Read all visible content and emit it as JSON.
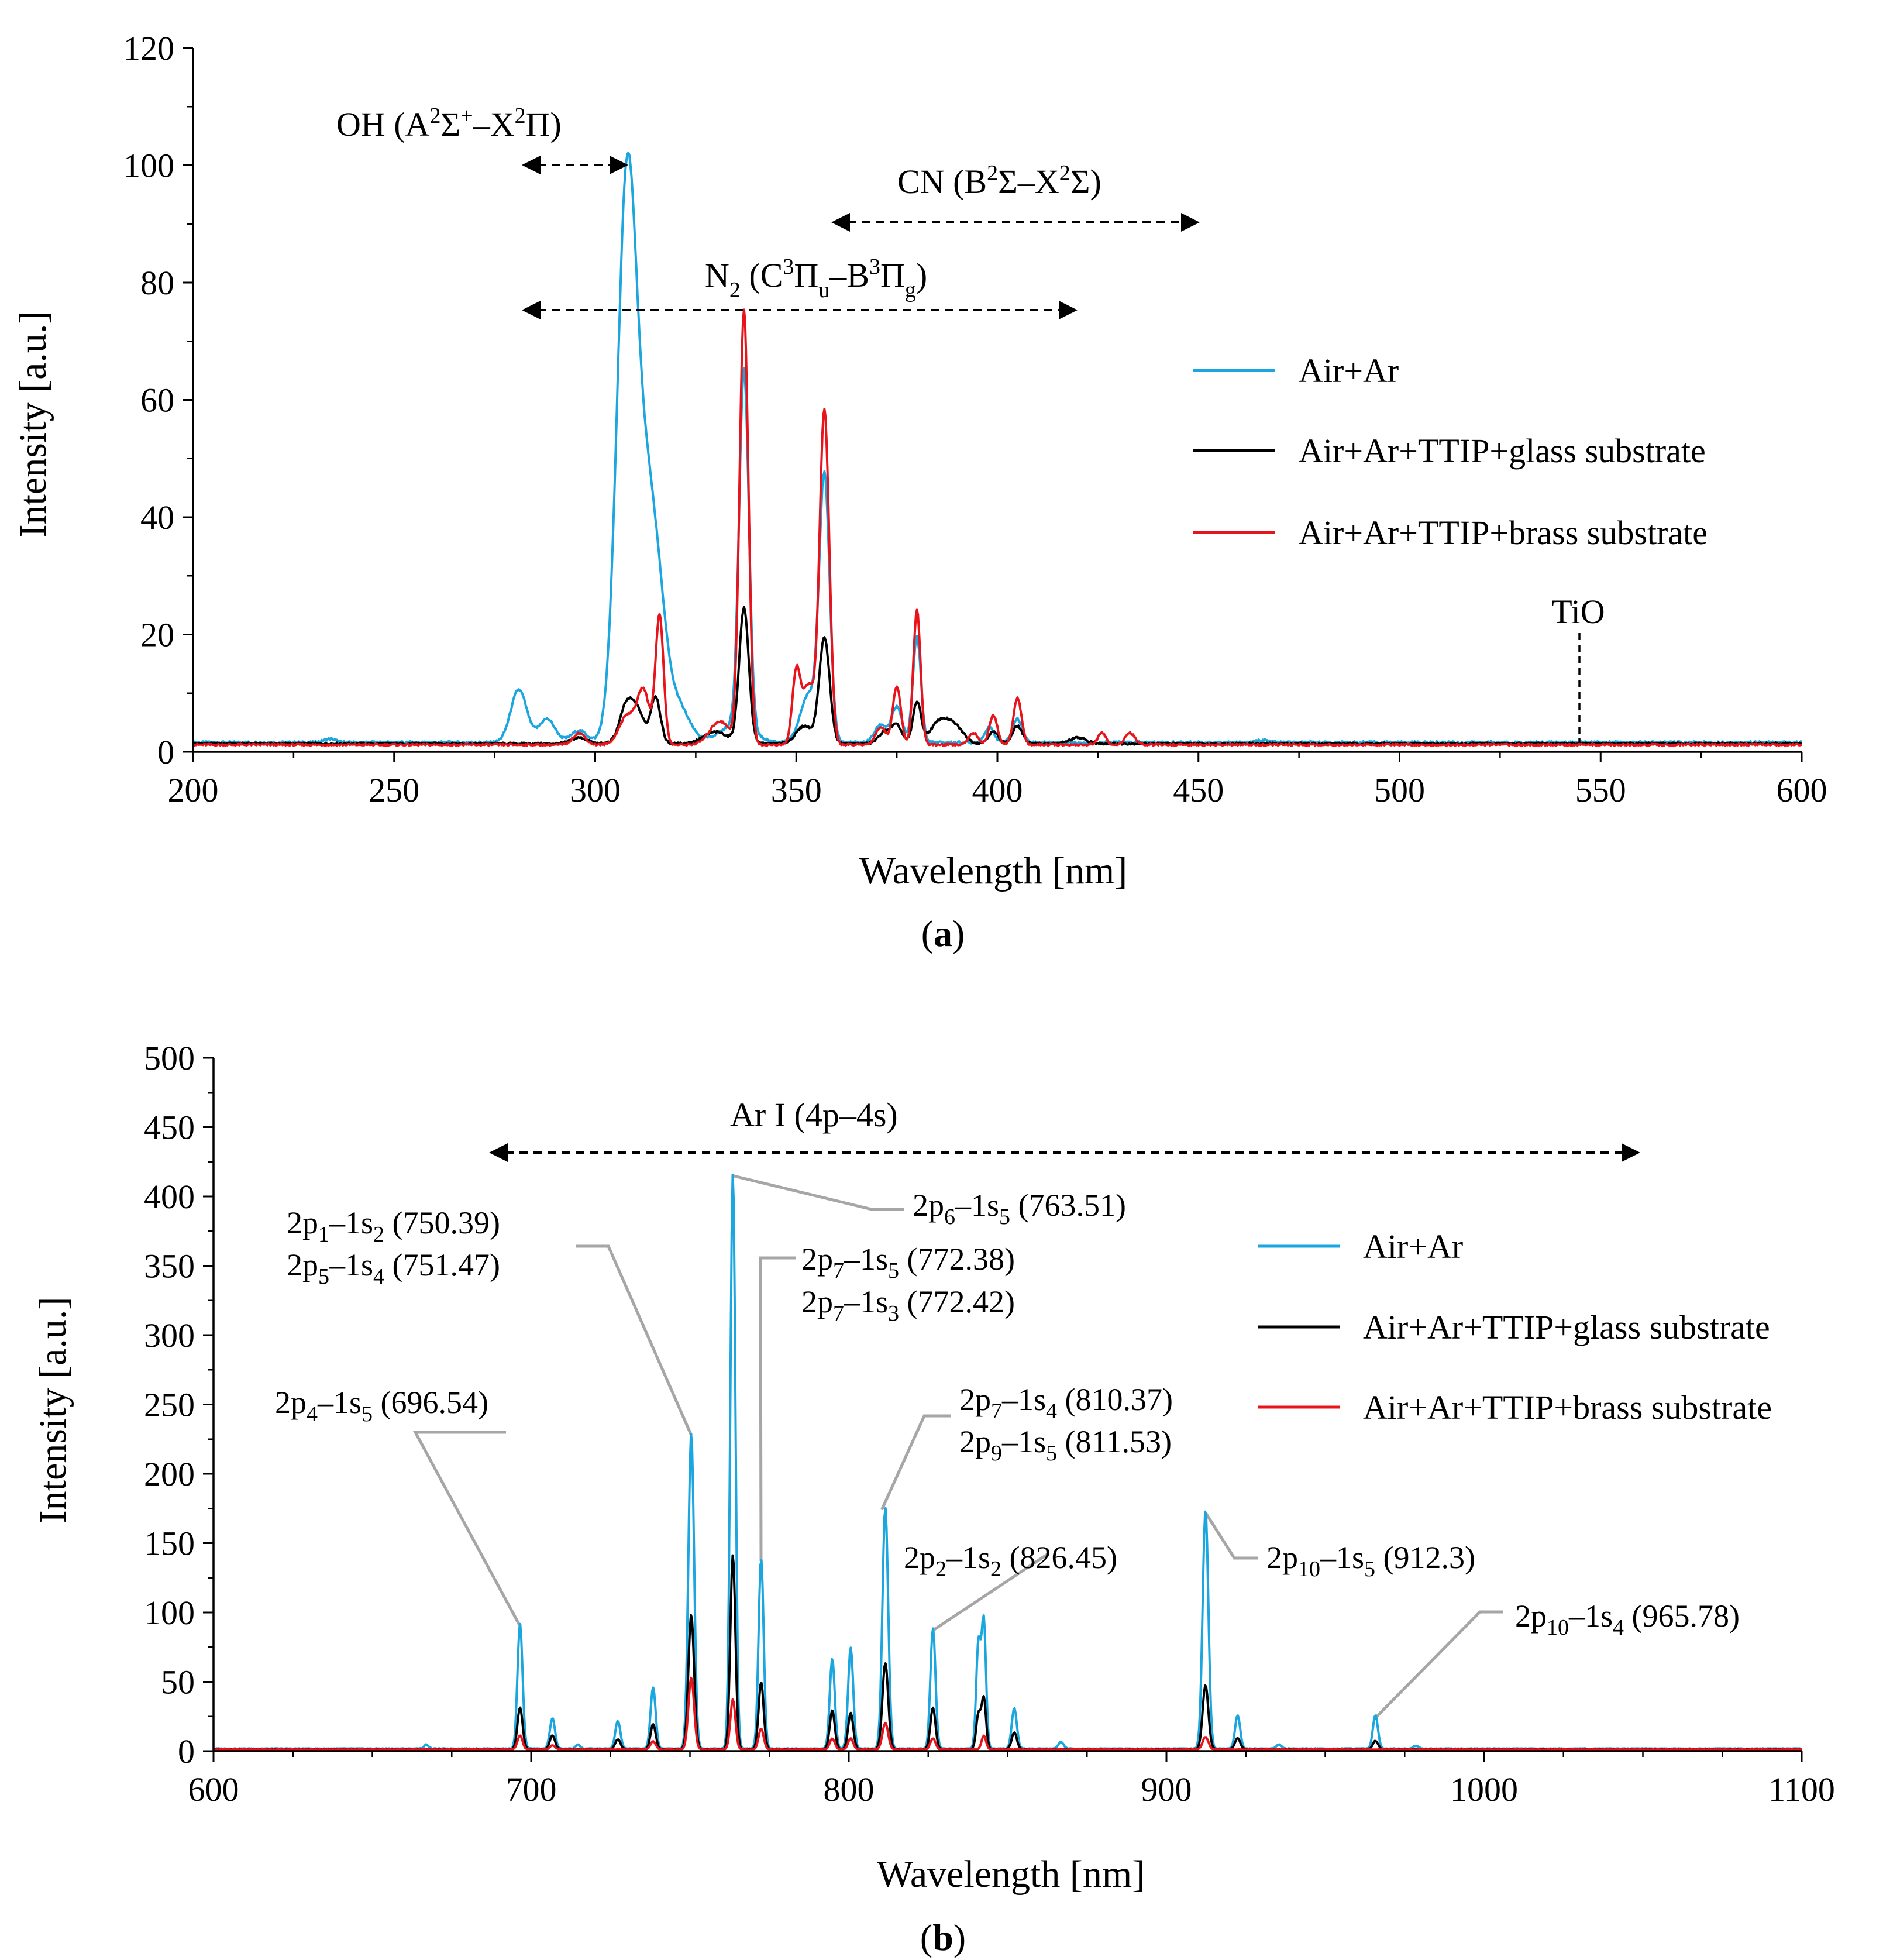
{
  "chart_data": [
    {
      "panel": "a",
      "type": "line",
      "caption_label": "a",
      "xlabel": "Wavelength [nm]",
      "ylabel": "Intensity [a.u.]",
      "xlim": [
        200,
        600
      ],
      "ylim": [
        0,
        120
      ],
      "xticks": [
        200,
        250,
        300,
        350,
        400,
        450,
        500,
        550,
        600
      ],
      "yticks": [
        0,
        20,
        40,
        60,
        80,
        100,
        120
      ],
      "legend_position": "right",
      "series": [
        {
          "name": "Air+Ar",
          "color": "#1ba6e0",
          "peaks": [
            [
              234,
              0.6,
              1.5
            ],
            [
              281,
              9,
              2
            ],
            [
              288,
              4,
              2
            ],
            [
              296,
              2,
              2
            ],
            [
              308,
              98,
              2.5
            ],
            [
              313,
              32,
              2.2
            ],
            [
              316,
              15,
              2
            ],
            [
              320,
              7,
              3
            ],
            [
              335,
              3,
              4
            ],
            [
              337,
              61,
              1.2
            ],
            [
              353,
              8,
              2
            ],
            [
              357,
              45,
              1.3
            ],
            [
              371,
              3,
              1.5
            ],
            [
              375,
              6,
              1.3
            ],
            [
              380,
              18,
              1
            ],
            [
              398,
              2.5,
              1.2
            ],
            [
              405,
              4,
              1.2
            ],
            [
              466,
              0.4,
              1.5
            ]
          ]
        },
        {
          "name": "Air+Ar+TTIP+glass substrate",
          "color": "#000000",
          "peaks": [
            [
              296,
              1,
              2
            ],
            [
              308,
              7,
              1.8
            ],
            [
              311,
              4,
              1.5
            ],
            [
              315,
              8,
              1.2
            ],
            [
              330,
              2,
              3
            ],
            [
              337,
              23,
              1.2
            ],
            [
              352,
              3,
              2
            ],
            [
              357,
              18,
              1.3
            ],
            [
              372,
              2,
              1.5
            ],
            [
              375,
              3,
              1.3
            ],
            [
              380,
              7,
              1
            ],
            [
              386,
              4,
              2.5
            ],
            [
              390,
              2,
              2
            ],
            [
              399,
              2,
              1.3
            ],
            [
              405,
              3,
              1.2
            ],
            [
              420,
              1,
              2
            ]
          ]
        },
        {
          "name": "Air+Ar+TTIP+brass substrate",
          "color": "#e8141c",
          "peaks": [
            [
              296,
              2,
              1.5
            ],
            [
              308,
              5,
              2
            ],
            [
              312,
              9,
              1.5
            ],
            [
              316,
              22,
              1
            ],
            [
              331,
              4,
              2.5
            ],
            [
              337,
              74,
              1.1
            ],
            [
              350,
              12,
              1
            ],
            [
              353,
              10,
              1.5
            ],
            [
              357,
              57,
              1.2
            ],
            [
              371,
              3,
              1.3
            ],
            [
              375,
              10,
              1
            ],
            [
              380,
              23,
              0.9
            ],
            [
              394,
              2,
              1.2
            ],
            [
              399,
              5,
              1
            ],
            [
              405,
              8,
              1
            ],
            [
              426,
              2,
              1
            ],
            [
              433,
              2,
              1.2
            ]
          ]
        }
      ],
      "baselines": [
        1.6,
        1.4,
        1.2
      ],
      "annotations": [
        {
          "label": "OH (A²Σ⁺–X²Π)",
          "x1": 281,
          "x2": 308,
          "y": 100
        },
        {
          "label": "CN (B²Σ–X²Σ)",
          "x1": 358,
          "x2": 450,
          "y": 90
        },
        {
          "label": "N₂ (C³Πu–B³Πg)",
          "x1": 281,
          "x2": 419,
          "y": 75
        },
        {
          "label": "TiO",
          "x": 545,
          "y": 20
        }
      ]
    },
    {
      "panel": "b",
      "type": "line",
      "caption_label": "b",
      "xlabel": "Wavelength [nm]",
      "ylabel": "Intensity [a.u.]",
      "xlim": [
        600,
        1100
      ],
      "ylim": [
        0,
        500
      ],
      "xticks": [
        600,
        700,
        800,
        900,
        1000,
        1100
      ],
      "yticks": [
        0,
        50,
        100,
        150,
        200,
        250,
        300,
        350,
        400,
        450,
        500
      ],
      "legend_position": "right",
      "series": [
        {
          "name": "Air+Ar",
          "color": "#1ba6e0",
          "peaks": [
            [
              667,
              3,
              0.7
            ],
            [
              696.5,
              90,
              0.8
            ],
            [
              706.7,
              22,
              0.8
            ],
            [
              714.7,
              3,
              0.7
            ],
            [
              727.3,
              20,
              0.8
            ],
            [
              738.4,
              44,
              0.8
            ],
            [
              750.4,
              228,
              0.9
            ],
            [
              763.5,
              415,
              0.8
            ],
            [
              772.4,
              137,
              0.8
            ],
            [
              794.8,
              65,
              0.8
            ],
            [
              800.6,
              73,
              0.8
            ],
            [
              811.5,
              174,
              0.9
            ],
            [
              826.5,
              87,
              0.8
            ],
            [
              840.8,
              75,
              0.7
            ],
            [
              842.5,
              92,
              0.7
            ],
            [
              852.1,
              29,
              0.8
            ],
            [
              866.8,
              5,
              0.8
            ],
            [
              912.3,
              172,
              0.9
            ],
            [
              922.4,
              24,
              0.8
            ],
            [
              935.4,
              3,
              0.8
            ],
            [
              965.8,
              24,
              0.8
            ],
            [
              978.5,
              2,
              0.8
            ]
          ]
        },
        {
          "name": "Air+Ar+TTIP+glass substrate",
          "color": "#000000",
          "peaks": [
            [
              696.5,
              30,
              0.8
            ],
            [
              706.7,
              10,
              0.8
            ],
            [
              727.3,
              7,
              0.8
            ],
            [
              738.4,
              18,
              0.8
            ],
            [
              750.4,
              97,
              0.9
            ],
            [
              763.5,
              140,
              0.8
            ],
            [
              772.4,
              48,
              0.8
            ],
            [
              794.8,
              28,
              0.8
            ],
            [
              800.6,
              26,
              0.8
            ],
            [
              811.5,
              62,
              0.9
            ],
            [
              826.5,
              30,
              0.8
            ],
            [
              840.8,
              25,
              0.7
            ],
            [
              842.5,
              37,
              0.7
            ],
            [
              852.1,
              12,
              0.8
            ],
            [
              912.3,
              46,
              0.9
            ],
            [
              922.4,
              8,
              0.8
            ],
            [
              965.8,
              6,
              0.8
            ]
          ]
        },
        {
          "name": "Air+Ar+TTIP+brass substrate",
          "color": "#e8141c",
          "peaks": [
            [
              696.5,
              10,
              0.8
            ],
            [
              706.7,
              3,
              0.8
            ],
            [
              738.4,
              6,
              0.8
            ],
            [
              750.4,
              52,
              0.9
            ],
            [
              763.5,
              36,
              0.8
            ],
            [
              772.4,
              15,
              0.8
            ],
            [
              794.8,
              8,
              0.8
            ],
            [
              800.6,
              8,
              0.8
            ],
            [
              811.5,
              19,
              0.9
            ],
            [
              826.5,
              8,
              0.8
            ],
            [
              842.5,
              10,
              0.7
            ],
            [
              912.3,
              9,
              0.9
            ]
          ]
        }
      ],
      "baselines": [
        1.8,
        1.5,
        1.2
      ],
      "annotations": [
        {
          "label": "Ar I (4p–4s)",
          "x1": 687,
          "x2": 1050,
          "y": 435
        },
        {
          "label": "2p4–1s5 (696.54)",
          "tip_x": 696.54,
          "tip_y": 90
        },
        {
          "label": "2p1–1s2 (750.39)",
          "tip_x": 750.39,
          "tip_y": 228
        },
        {
          "label": "2p5–1s4 (751.47)",
          "tip_x": 751.47,
          "tip_y": 228
        },
        {
          "label": "2p6–1s5 (763.51)",
          "tip_x": 763.51,
          "tip_y": 415
        },
        {
          "label": "2p7–1s5 (772.38)",
          "tip_x": 772.38,
          "tip_y": 137
        },
        {
          "label": "2p7–1s3 (772.42)",
          "tip_x": 772.42,
          "tip_y": 137
        },
        {
          "label": "2p7–1s4 (810.37)",
          "tip_x": 810.37,
          "tip_y": 174
        },
        {
          "label": "2p9–1s5 (811.53)",
          "tip_x": 811.53,
          "tip_y": 174
        },
        {
          "label": "2p2–1s2 (826.45)",
          "tip_x": 826.45,
          "tip_y": 87
        },
        {
          "label": "2p10–1s5 (912.3)",
          "tip_x": 912.3,
          "tip_y": 172
        },
        {
          "label": "2p10–1s4 (965.78)",
          "tip_x": 965.78,
          "tip_y": 24
        }
      ]
    }
  ]
}
